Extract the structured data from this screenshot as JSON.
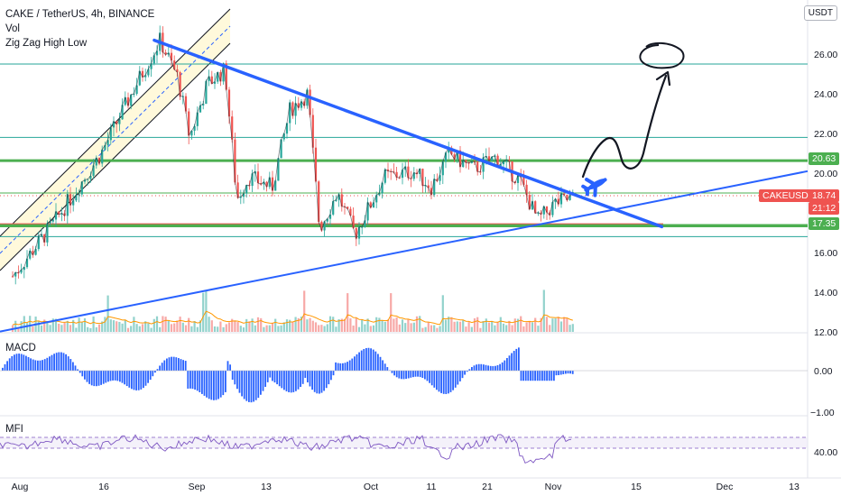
{
  "legend": {
    "symbol_line": "CAKE / TetherUS, 4h, BINANCE",
    "vol_label": "Vol",
    "zigzag_label": "Zig Zag High Low"
  },
  "currency_button": "USDT",
  "panes": {
    "macd_label": "MACD",
    "mfi_label": "MFI"
  },
  "price_axis": {
    "ticks": [
      "26.00",
      "24.00",
      "22.00",
      "20.00",
      "16.00",
      "14.00",
      "12.00"
    ]
  },
  "macd_axis": {
    "ticks": [
      "0.00",
      "−1.00"
    ]
  },
  "mfi_axis": {
    "ticks": [
      "40.00"
    ]
  },
  "time_axis": {
    "ticks": [
      "Aug",
      "16",
      "Sep",
      "13",
      "Oct",
      "11",
      "21",
      "Nov",
      "15",
      "Dec",
      "13"
    ]
  },
  "tags": {
    "resistance": "20.63",
    "symbol": "CAKEUSDT",
    "price": "18.74",
    "countdown": "21:12",
    "support": "17.35"
  },
  "colors": {
    "bull": "#26a69a",
    "bear": "#ef5350",
    "trendline": "#2962ff",
    "level_green": "#4caf50",
    "level_teal": "#26a69a",
    "channel_fill": "#fff9db",
    "macd_hist": "#2962ff",
    "mfi_line": "#7e57c2",
    "vol_ma": "#ff9800"
  },
  "chart_data": {
    "type": "candlestick",
    "title": "CAKE / TetherUS, 4h, BINANCE",
    "y_unit": "USDT",
    "ylim": [
      12,
      27
    ],
    "x_range": [
      "Aug",
      "Dec 13"
    ],
    "price_path": [
      {
        "x": "Aug",
        "y": 14.8
      },
      {
        "x": "Aug 8",
        "y": 17.5
      },
      {
        "x": "Aug 16",
        "y": 21.0
      },
      {
        "x": "Aug 22",
        "y": 24.5
      },
      {
        "x": "Aug 26",
        "y": 26.7
      },
      {
        "x": "Aug 29",
        "y": 24.8
      },
      {
        "x": "Aug 31",
        "y": 21.8
      },
      {
        "x": "Sep 3",
        "y": 24.5
      },
      {
        "x": "Sep 6",
        "y": 25.2
      },
      {
        "x": "Sep 8",
        "y": 18.7
      },
      {
        "x": "Sep 10",
        "y": 19.8
      },
      {
        "x": "Sep 14",
        "y": 19.3
      },
      {
        "x": "Sep 17",
        "y": 23.2
      },
      {
        "x": "Sep 20",
        "y": 24.0
      },
      {
        "x": "Sep 22",
        "y": 17.2
      },
      {
        "x": "Sep 25",
        "y": 19.0
      },
      {
        "x": "Sep 28",
        "y": 16.9
      },
      {
        "x": "Oct 3",
        "y": 19.8
      },
      {
        "x": "Oct 8",
        "y": 20.1
      },
      {
        "x": "Oct 11",
        "y": 19.3
      },
      {
        "x": "Oct 14",
        "y": 21.0
      },
      {
        "x": "Oct 18",
        "y": 20.2
      },
      {
        "x": "Oct 22",
        "y": 20.8
      },
      {
        "x": "Oct 26",
        "y": 19.6
      },
      {
        "x": "Oct 29",
        "y": 17.6
      },
      {
        "x": "Nov 1",
        "y": 18.5
      },
      {
        "x": "Nov 4",
        "y": 18.74
      }
    ],
    "horizontal_levels": [
      25.5,
      21.8,
      20.63,
      19.0,
      17.35,
      16.8
    ],
    "trendlines": [
      {
        "from": {
          "x": "Aug 25",
          "y": 26.7
        },
        "to": {
          "x": "Nov 19",
          "y": 17.3
        }
      },
      {
        "from": {
          "x": "Aug",
          "y": 12.2
        },
        "to": {
          "x": "Dec 13",
          "y": 20.1
        }
      }
    ],
    "markers": {
      "resistance": 20.63,
      "last_price": 18.74,
      "support": 17.35
    },
    "macd_range": [
      -1.0,
      0.5
    ],
    "mfi_level": 40
  }
}
